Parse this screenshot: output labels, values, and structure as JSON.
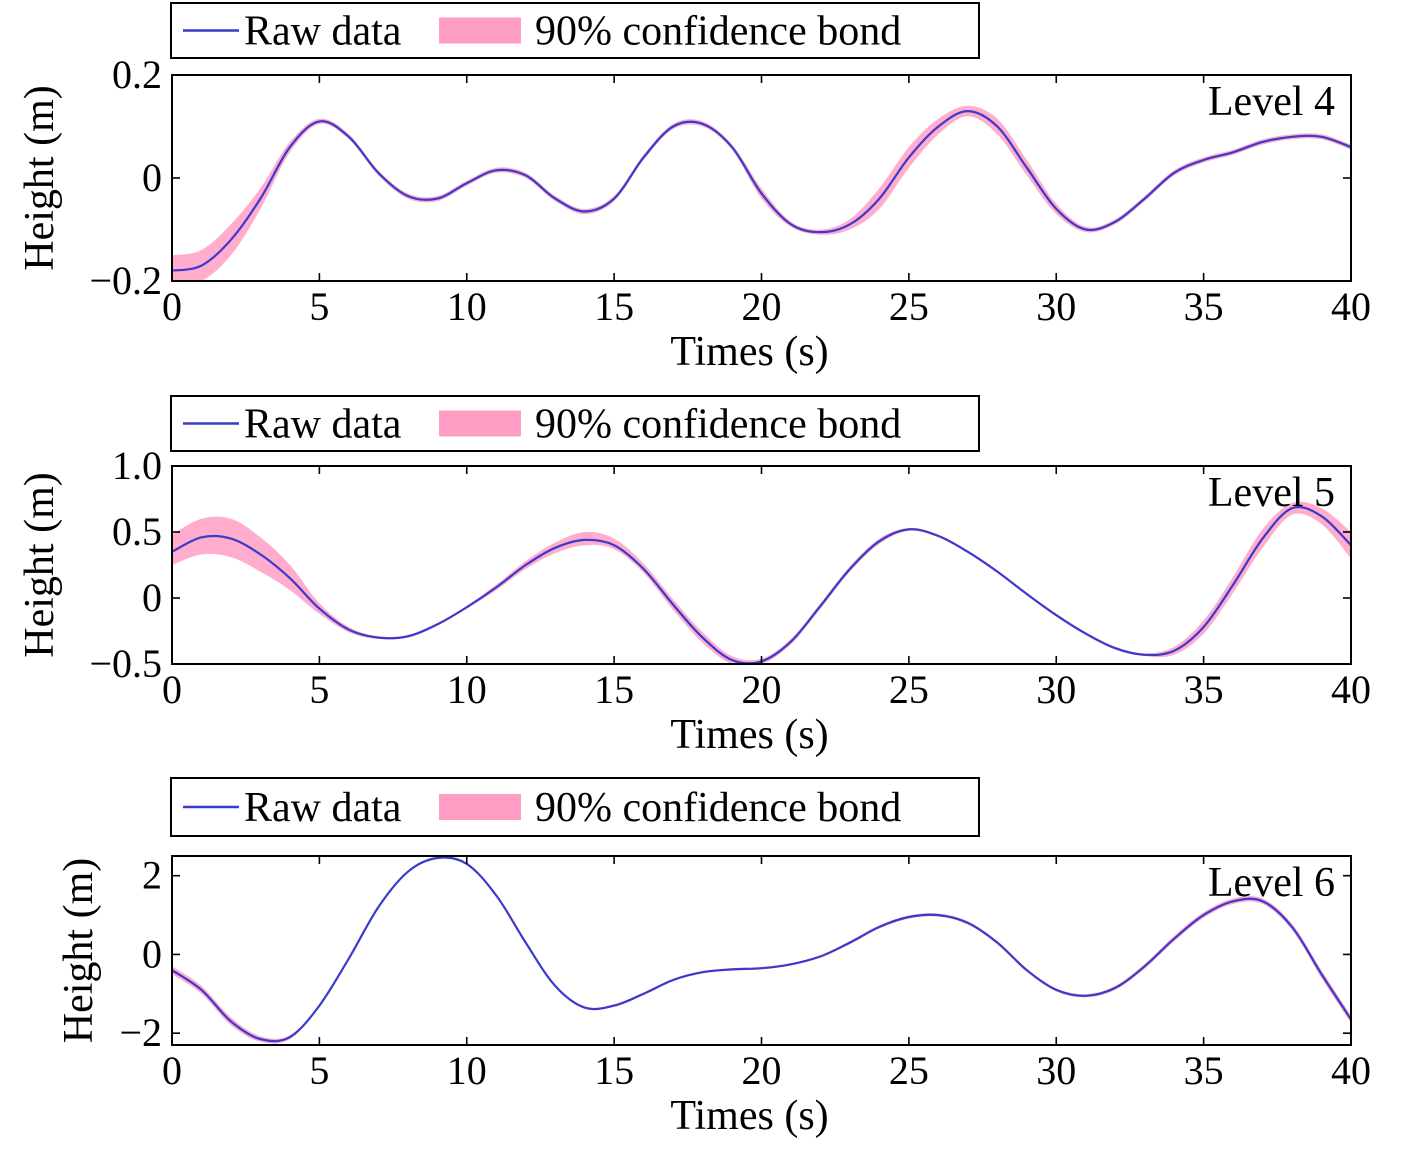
{
  "legend": {
    "raw_label": "Raw data",
    "band_label": "90% confidence bond"
  },
  "colors": {
    "line": "#3a3acc",
    "band": "#ff9ec4",
    "band_fill_opacity": 0.85
  },
  "chart_data": [
    {
      "type": "line",
      "annotation": "Level 4",
      "xlabel": "Times (s)",
      "ylabel": "Height (m)",
      "xlim": [
        0,
        40
      ],
      "ylim": [
        -0.2,
        0.2
      ],
      "xticks": [
        0,
        5,
        10,
        15,
        20,
        25,
        30,
        35,
        40
      ],
      "yticks": [
        -0.2,
        0,
        0.2
      ],
      "yticklabels": [
        "−0.2",
        "0",
        "0.2"
      ],
      "grid": false,
      "legend_position": "above-left",
      "series": [
        {
          "name": "Raw data",
          "kind": "line",
          "x": [
            0,
            1,
            2,
            3,
            4,
            5,
            6,
            7,
            8,
            9,
            10,
            11,
            12,
            13,
            14,
            15,
            16,
            17,
            18,
            19,
            20,
            21,
            22,
            23,
            24,
            25,
            26,
            27,
            28,
            29,
            30,
            31,
            32,
            33,
            34,
            35,
            36,
            37,
            38,
            39,
            40
          ],
          "y": [
            -0.18,
            -0.17,
            -0.12,
            -0.04,
            0.06,
            0.11,
            0.08,
            0.01,
            -0.035,
            -0.04,
            -0.01,
            0.015,
            0.005,
            -0.04,
            -0.065,
            -0.04,
            0.04,
            0.1,
            0.105,
            0.06,
            -0.03,
            -0.09,
            -0.105,
            -0.09,
            -0.04,
            0.04,
            0.1,
            0.13,
            0.1,
            0.02,
            -0.06,
            -0.1,
            -0.085,
            -0.04,
            0.01,
            0.035,
            0.05,
            0.07,
            0.08,
            0.08,
            0.06
          ]
        },
        {
          "name": "90% confidence bond",
          "kind": "band",
          "x": [
            0,
            1,
            2,
            3,
            4,
            5,
            6,
            7,
            8,
            9,
            10,
            11,
            12,
            13,
            14,
            15,
            16,
            17,
            18,
            19,
            20,
            21,
            22,
            23,
            24,
            25,
            26,
            27,
            28,
            29,
            30,
            31,
            32,
            33,
            34,
            35,
            36,
            37,
            38,
            39,
            40
          ],
          "lower": [
            -0.21,
            -0.2,
            -0.15,
            -0.06,
            0.05,
            0.105,
            0.075,
            0.005,
            -0.04,
            -0.045,
            -0.015,
            0.01,
            0.0,
            -0.045,
            -0.07,
            -0.045,
            0.035,
            0.095,
            0.1,
            0.055,
            -0.04,
            -0.095,
            -0.11,
            -0.1,
            -0.06,
            0.02,
            0.085,
            0.12,
            0.085,
            0.005,
            -0.07,
            -0.105,
            -0.09,
            -0.045,
            0.005,
            0.03,
            0.045,
            0.065,
            0.075,
            0.075,
            0.055
          ],
          "upper": [
            -0.15,
            -0.14,
            -0.09,
            -0.02,
            0.07,
            0.115,
            0.085,
            0.015,
            -0.03,
            -0.035,
            -0.005,
            0.02,
            0.01,
            -0.035,
            -0.06,
            -0.035,
            0.045,
            0.105,
            0.11,
            0.065,
            -0.02,
            -0.085,
            -0.1,
            -0.08,
            -0.02,
            0.06,
            0.115,
            0.14,
            0.115,
            0.035,
            -0.05,
            -0.095,
            -0.08,
            -0.035,
            0.015,
            0.04,
            0.055,
            0.075,
            0.085,
            0.085,
            0.065
          ]
        }
      ]
    },
    {
      "type": "line",
      "annotation": "Level 5",
      "xlabel": "Times (s)",
      "ylabel": "Height (m)",
      "xlim": [
        0,
        40
      ],
      "ylim": [
        -0.5,
        1.0
      ],
      "xticks": [
        0,
        5,
        10,
        15,
        20,
        25,
        30,
        35,
        40
      ],
      "yticks": [
        -0.5,
        0,
        0.5,
        1.0
      ],
      "yticklabels": [
        "−0.5",
        "0",
        "0.5",
        "1.0"
      ],
      "grid": false,
      "legend_position": "above-left",
      "series": [
        {
          "name": "Raw data",
          "kind": "line",
          "x": [
            0,
            1,
            2,
            3,
            4,
            5,
            6,
            7,
            8,
            9,
            10,
            11,
            12,
            13,
            14,
            15,
            16,
            17,
            18,
            19,
            20,
            21,
            22,
            23,
            24,
            25,
            26,
            27,
            28,
            29,
            30,
            31,
            32,
            33,
            34,
            35,
            36,
            37,
            38,
            39,
            40
          ],
          "y": [
            0.35,
            0.46,
            0.45,
            0.33,
            0.15,
            -0.08,
            -0.24,
            -0.3,
            -0.29,
            -0.2,
            -0.07,
            0.08,
            0.25,
            0.38,
            0.44,
            0.4,
            0.22,
            -0.05,
            -0.3,
            -0.47,
            -0.48,
            -0.33,
            -0.06,
            0.22,
            0.43,
            0.52,
            0.47,
            0.35,
            0.2,
            0.03,
            -0.13,
            -0.27,
            -0.38,
            -0.43,
            -0.4,
            -0.22,
            0.1,
            0.45,
            0.68,
            0.62,
            0.4
          ]
        },
        {
          "name": "90% confidence bond",
          "kind": "band",
          "x": [
            0,
            1,
            2,
            3,
            4,
            5,
            6,
            7,
            8,
            9,
            10,
            11,
            12,
            13,
            14,
            15,
            16,
            17,
            18,
            19,
            20,
            21,
            22,
            23,
            24,
            25,
            26,
            27,
            28,
            29,
            30,
            31,
            32,
            33,
            34,
            35,
            36,
            37,
            38,
            39,
            40
          ],
          "lower": [
            0.25,
            0.33,
            0.31,
            0.2,
            0.06,
            -0.12,
            -0.26,
            -0.31,
            -0.3,
            -0.21,
            -0.08,
            0.06,
            0.22,
            0.34,
            0.4,
            0.37,
            0.19,
            -0.09,
            -0.34,
            -0.5,
            -0.5,
            -0.35,
            -0.08,
            0.2,
            0.41,
            0.51,
            0.46,
            0.34,
            0.19,
            0.02,
            -0.14,
            -0.28,
            -0.39,
            -0.44,
            -0.43,
            -0.27,
            0.04,
            0.38,
            0.63,
            0.56,
            0.3
          ],
          "upper": [
            0.48,
            0.6,
            0.6,
            0.46,
            0.25,
            -0.04,
            -0.22,
            -0.29,
            -0.28,
            -0.19,
            -0.06,
            0.1,
            0.28,
            0.42,
            0.5,
            0.45,
            0.26,
            -0.01,
            -0.26,
            -0.44,
            -0.46,
            -0.31,
            -0.04,
            0.24,
            0.45,
            0.53,
            0.48,
            0.36,
            0.21,
            0.04,
            -0.12,
            -0.26,
            -0.37,
            -0.42,
            -0.37,
            -0.17,
            0.16,
            0.52,
            0.72,
            0.68,
            0.5
          ]
        }
      ]
    },
    {
      "type": "line",
      "annotation": "Level 6",
      "xlabel": "Times (s)",
      "ylabel": "Height (m)",
      "xlim": [
        0,
        40
      ],
      "ylim": [
        -2.3,
        2.5
      ],
      "xticks": [
        0,
        5,
        10,
        15,
        20,
        25,
        30,
        35,
        40
      ],
      "yticks": [
        -2,
        0,
        2
      ],
      "yticklabels": [
        "−2",
        "0",
        "2"
      ],
      "grid": false,
      "legend_position": "above-left",
      "series": [
        {
          "name": "Raw data",
          "kind": "line",
          "x": [
            0,
            1,
            2,
            3,
            4,
            5,
            6,
            7,
            8,
            9,
            10,
            11,
            12,
            13,
            14,
            15,
            16,
            17,
            18,
            19,
            20,
            21,
            22,
            23,
            24,
            25,
            26,
            27,
            28,
            29,
            30,
            31,
            32,
            33,
            34,
            35,
            36,
            37,
            38,
            39,
            40
          ],
          "y": [
            -0.4,
            -0.9,
            -1.7,
            -2.15,
            -2.1,
            -1.3,
            -0.1,
            1.2,
            2.1,
            2.45,
            2.3,
            1.5,
            0.3,
            -0.8,
            -1.35,
            -1.3,
            -1.0,
            -0.65,
            -0.45,
            -0.38,
            -0.35,
            -0.25,
            -0.05,
            0.3,
            0.7,
            0.95,
            1.0,
            0.8,
            0.3,
            -0.4,
            -0.9,
            -1.05,
            -0.85,
            -0.3,
            0.4,
            1.0,
            1.35,
            1.35,
            0.7,
            -0.5,
            -1.65
          ]
        },
        {
          "name": "90% confidence bond",
          "kind": "band",
          "x": [
            0,
            1,
            2,
            3,
            4,
            5,
            6,
            7,
            8,
            9,
            10,
            11,
            12,
            13,
            14,
            15,
            16,
            17,
            18,
            19,
            20,
            21,
            22,
            23,
            24,
            25,
            26,
            27,
            28,
            29,
            30,
            31,
            32,
            33,
            34,
            35,
            36,
            37,
            38,
            39,
            40
          ],
          "lower": [
            -0.5,
            -1.0,
            -1.8,
            -2.22,
            -2.15,
            -1.33,
            -0.12,
            1.18,
            2.08,
            2.42,
            2.27,
            1.47,
            0.27,
            -0.83,
            -1.38,
            -1.33,
            -1.03,
            -0.68,
            -0.48,
            -0.41,
            -0.38,
            -0.28,
            -0.08,
            0.26,
            0.66,
            0.91,
            0.96,
            0.76,
            0.26,
            -0.44,
            -0.94,
            -1.09,
            -0.9,
            -0.36,
            0.33,
            0.93,
            1.28,
            1.28,
            0.62,
            -0.6,
            -1.75
          ],
          "upper": [
            -0.3,
            -0.8,
            -1.6,
            -2.08,
            -2.05,
            -1.27,
            -0.08,
            1.22,
            2.12,
            2.48,
            2.33,
            1.53,
            0.33,
            -0.77,
            -1.32,
            -1.27,
            -0.97,
            -0.62,
            -0.42,
            -0.35,
            -0.32,
            -0.22,
            -0.02,
            0.34,
            0.74,
            0.99,
            1.04,
            0.84,
            0.34,
            -0.36,
            -0.86,
            -1.01,
            -0.8,
            -0.24,
            0.47,
            1.07,
            1.42,
            1.42,
            0.78,
            -0.4,
            -1.55
          ]
        }
      ]
    }
  ]
}
